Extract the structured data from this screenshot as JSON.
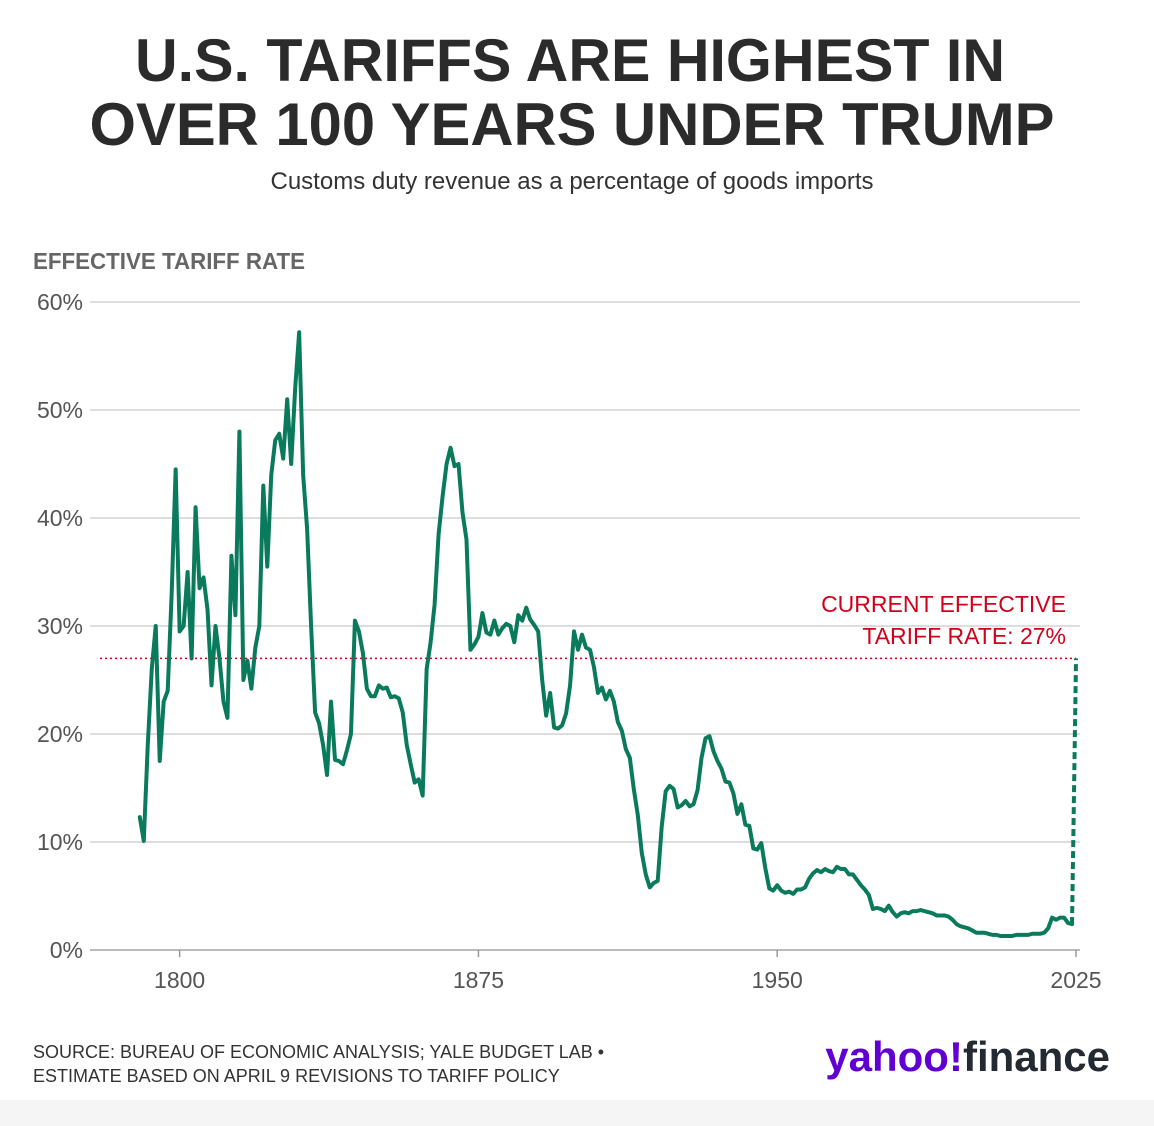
{
  "chart_data": {
    "type": "line",
    "title": [
      "U.S. TARIFFS ARE HIGHEST IN",
      "OVER 100 YEARS UNDER TRUMP"
    ],
    "subtitle": "Customs duty revenue as a percentage of goods imports",
    "y_axis_label": "EFFECTIVE TARIFF RATE",
    "source": [
      "SOURCE: BUREAU OF ECONOMIC ANALYSIS; YALE BUDGET LAB •",
      "ESTIMATE BASED ON APRIL 9 REVISIONS TO TARIFF POLICY"
    ],
    "brand": [
      "yahoo!",
      "finance"
    ],
    "xlim": [
      1777.5,
      2026
    ],
    "xticks": [
      1800,
      1875,
      1950,
      2025
    ],
    "ylim": [
      0,
      60
    ],
    "yticks": [
      {
        "value": 0,
        "label": "0%"
      },
      {
        "value": 10,
        "label": "10%"
      },
      {
        "value": 20,
        "label": "20%"
      },
      {
        "value": 30,
        "label": "30%"
      },
      {
        "value": 40,
        "label": "40%"
      },
      {
        "value": 50,
        "label": "50%"
      },
      {
        "value": 60,
        "label": "60%"
      }
    ],
    "grid": true,
    "reference_line": {
      "value": 27,
      "color": "#d0021b",
      "label": [
        "CURRENT EFFECTIVE",
        "TARIFF RATE: 27%"
      ]
    },
    "series": [
      {
        "color": "#0a7a5c",
        "dashed": false,
        "x": [
          1790,
          1791,
          1792,
          1793,
          1794,
          1795,
          1796,
          1797,
          1798,
          1799,
          1800,
          1801,
          1802,
          1803,
          1804,
          1805,
          1806,
          1807,
          1808,
          1809,
          1810,
          1811,
          1812,
          1813,
          1814,
          1815,
          1816,
          1817,
          1818,
          1819,
          1820,
          1821,
          1822,
          1823,
          1824,
          1825,
          1826,
          1827,
          1828,
          1829,
          1830,
          1831,
          1832,
          1833,
          1834,
          1835,
          1836,
          1837,
          1838,
          1839,
          1840,
          1841,
          1842,
          1843,
          1844,
          1845,
          1846,
          1847,
          1848,
          1849,
          1850,
          1851,
          1852,
          1853,
          1854,
          1855,
          1856,
          1857,
          1858,
          1859,
          1860,
          1861,
          1862,
          1863,
          1864,
          1865,
          1866,
          1867,
          1868,
          1869,
          1870,
          1871,
          1872,
          1873,
          1874,
          1875,
          1876,
          1877,
          1878,
          1879,
          1880,
          1881,
          1882,
          1883,
          1884,
          1885,
          1886,
          1887,
          1888,
          1889,
          1890,
          1891,
          1892,
          1893,
          1894,
          1895,
          1896,
          1897,
          1898,
          1899,
          1900,
          1901,
          1902,
          1903,
          1904,
          1905,
          1906,
          1907,
          1908,
          1909,
          1910,
          1911,
          1912,
          1913,
          1914,
          1915,
          1916,
          1917,
          1918,
          1919,
          1920,
          1921,
          1922,
          1923,
          1924,
          1925,
          1926,
          1927,
          1928,
          1929,
          1930,
          1931,
          1932,
          1933,
          1934,
          1935,
          1936,
          1937,
          1938,
          1939,
          1940,
          1941,
          1942,
          1943,
          1944,
          1945,
          1946,
          1947,
          1948,
          1949,
          1950,
          1951,
          1952,
          1953,
          1954,
          1955,
          1956,
          1957,
          1958,
          1959,
          1960,
          1961,
          1962,
          1963,
          1964,
          1965,
          1966,
          1967,
          1968,
          1969,
          1970,
          1971,
          1972,
          1973,
          1974,
          1975,
          1976,
          1977,
          1978,
          1979,
          1980,
          1981,
          1982,
          1983,
          1984,
          1985,
          1986,
          1987,
          1988,
          1989,
          1990,
          1991,
          1992,
          1993,
          1994,
          1995,
          1996,
          1997,
          1998,
          1999,
          2000,
          2001,
          2002,
          2003,
          2004,
          2005,
          2006,
          2007,
          2008,
          2009,
          2010,
          2011,
          2012,
          2013,
          2014,
          2015,
          2016,
          2017,
          2018,
          2019,
          2020,
          2021,
          2022,
          2023,
          2024
        ],
        "values": [
          12.3,
          10.1,
          19,
          26,
          30,
          17.5,
          23,
          24,
          33,
          44.5,
          29.5,
          30,
          35,
          27,
          41,
          33.5,
          34.5,
          31.5,
          24.5,
          30,
          27,
          23,
          21.5,
          36.5,
          31,
          48,
          25,
          26.8,
          24.2,
          28,
          30,
          43,
          35.5,
          44,
          47.2,
          47.8,
          45.5,
          51,
          45,
          52,
          57.2,
          44,
          39,
          30,
          22,
          21,
          19,
          16.2,
          23,
          17.6,
          17.5,
          17.2,
          18.5,
          20,
          30.5,
          29.5,
          27.5,
          24.2,
          23.5,
          23.5,
          24.5,
          24.2,
          24.3,
          23.4,
          23.5,
          23.3,
          22,
          19,
          17.2,
          15.5,
          15.8,
          14.3,
          26,
          28.5,
          32,
          38.5,
          42,
          45,
          46.5,
          44.8,
          45,
          40.5,
          38,
          27.8,
          28.3,
          29,
          31.2,
          29.4,
          29.2,
          30.5,
          29.2,
          29.8,
          30.2,
          30,
          28.5,
          31,
          30.5,
          31.7,
          30.6,
          30.1,
          29.5,
          25,
          21.7,
          23.8,
          20.6,
          20.5,
          20.8,
          21.9,
          24.5,
          29.5,
          27.8,
          29.2,
          28,
          27.8,
          26.2,
          23.8,
          24.3,
          23.2,
          24,
          23,
          21.1,
          20.3,
          18.6,
          17.8,
          14.9,
          12.5,
          9,
          7,
          5.8,
          6.2,
          6.4,
          11.4,
          14.7,
          15.2,
          14.9,
          13.2,
          13.4,
          13.8,
          13.3,
          13.5,
          14.8,
          17.8,
          19.6,
          19.8,
          18.4,
          17.5,
          16.8,
          15.6,
          15.5,
          14.5,
          12.6,
          13.5,
          11.6,
          11.5,
          9.4,
          9.3,
          9.9,
          7.6,
          5.7,
          5.5,
          6,
          5.5,
          5.3,
          5.4,
          5.2,
          5.6,
          5.6,
          5.8,
          6.6,
          7.1,
          7.4,
          7.2,
          7.5,
          7.3,
          7.2,
          7.7,
          7.5,
          7.5,
          7,
          7,
          6.5,
          6,
          5.6,
          5.1,
          3.8,
          3.9,
          3.8,
          3.6,
          4.1,
          3.5,
          3.1,
          3.4,
          3.5,
          3.4,
          3.6,
          3.6,
          3.7,
          3.6,
          3.5,
          3.4,
          3.2,
          3.2,
          3.2,
          3.1,
          2.8,
          2.4,
          2.2,
          2.1,
          2,
          1.8,
          1.6,
          1.6,
          1.6,
          1.5,
          1.4,
          1.4,
          1.3,
          1.3,
          1.3,
          1.3,
          1.4,
          1.4,
          1.4,
          1.4,
          1.5,
          1.5,
          1.5,
          1.6,
          2,
          3,
          2.8,
          3,
          3,
          2.5,
          2.4
        ]
      },
      {
        "color": "#0a7a5c",
        "dashed": true,
        "x": [
          2024,
          2025
        ],
        "values": [
          2.4,
          27
        ]
      }
    ]
  }
}
